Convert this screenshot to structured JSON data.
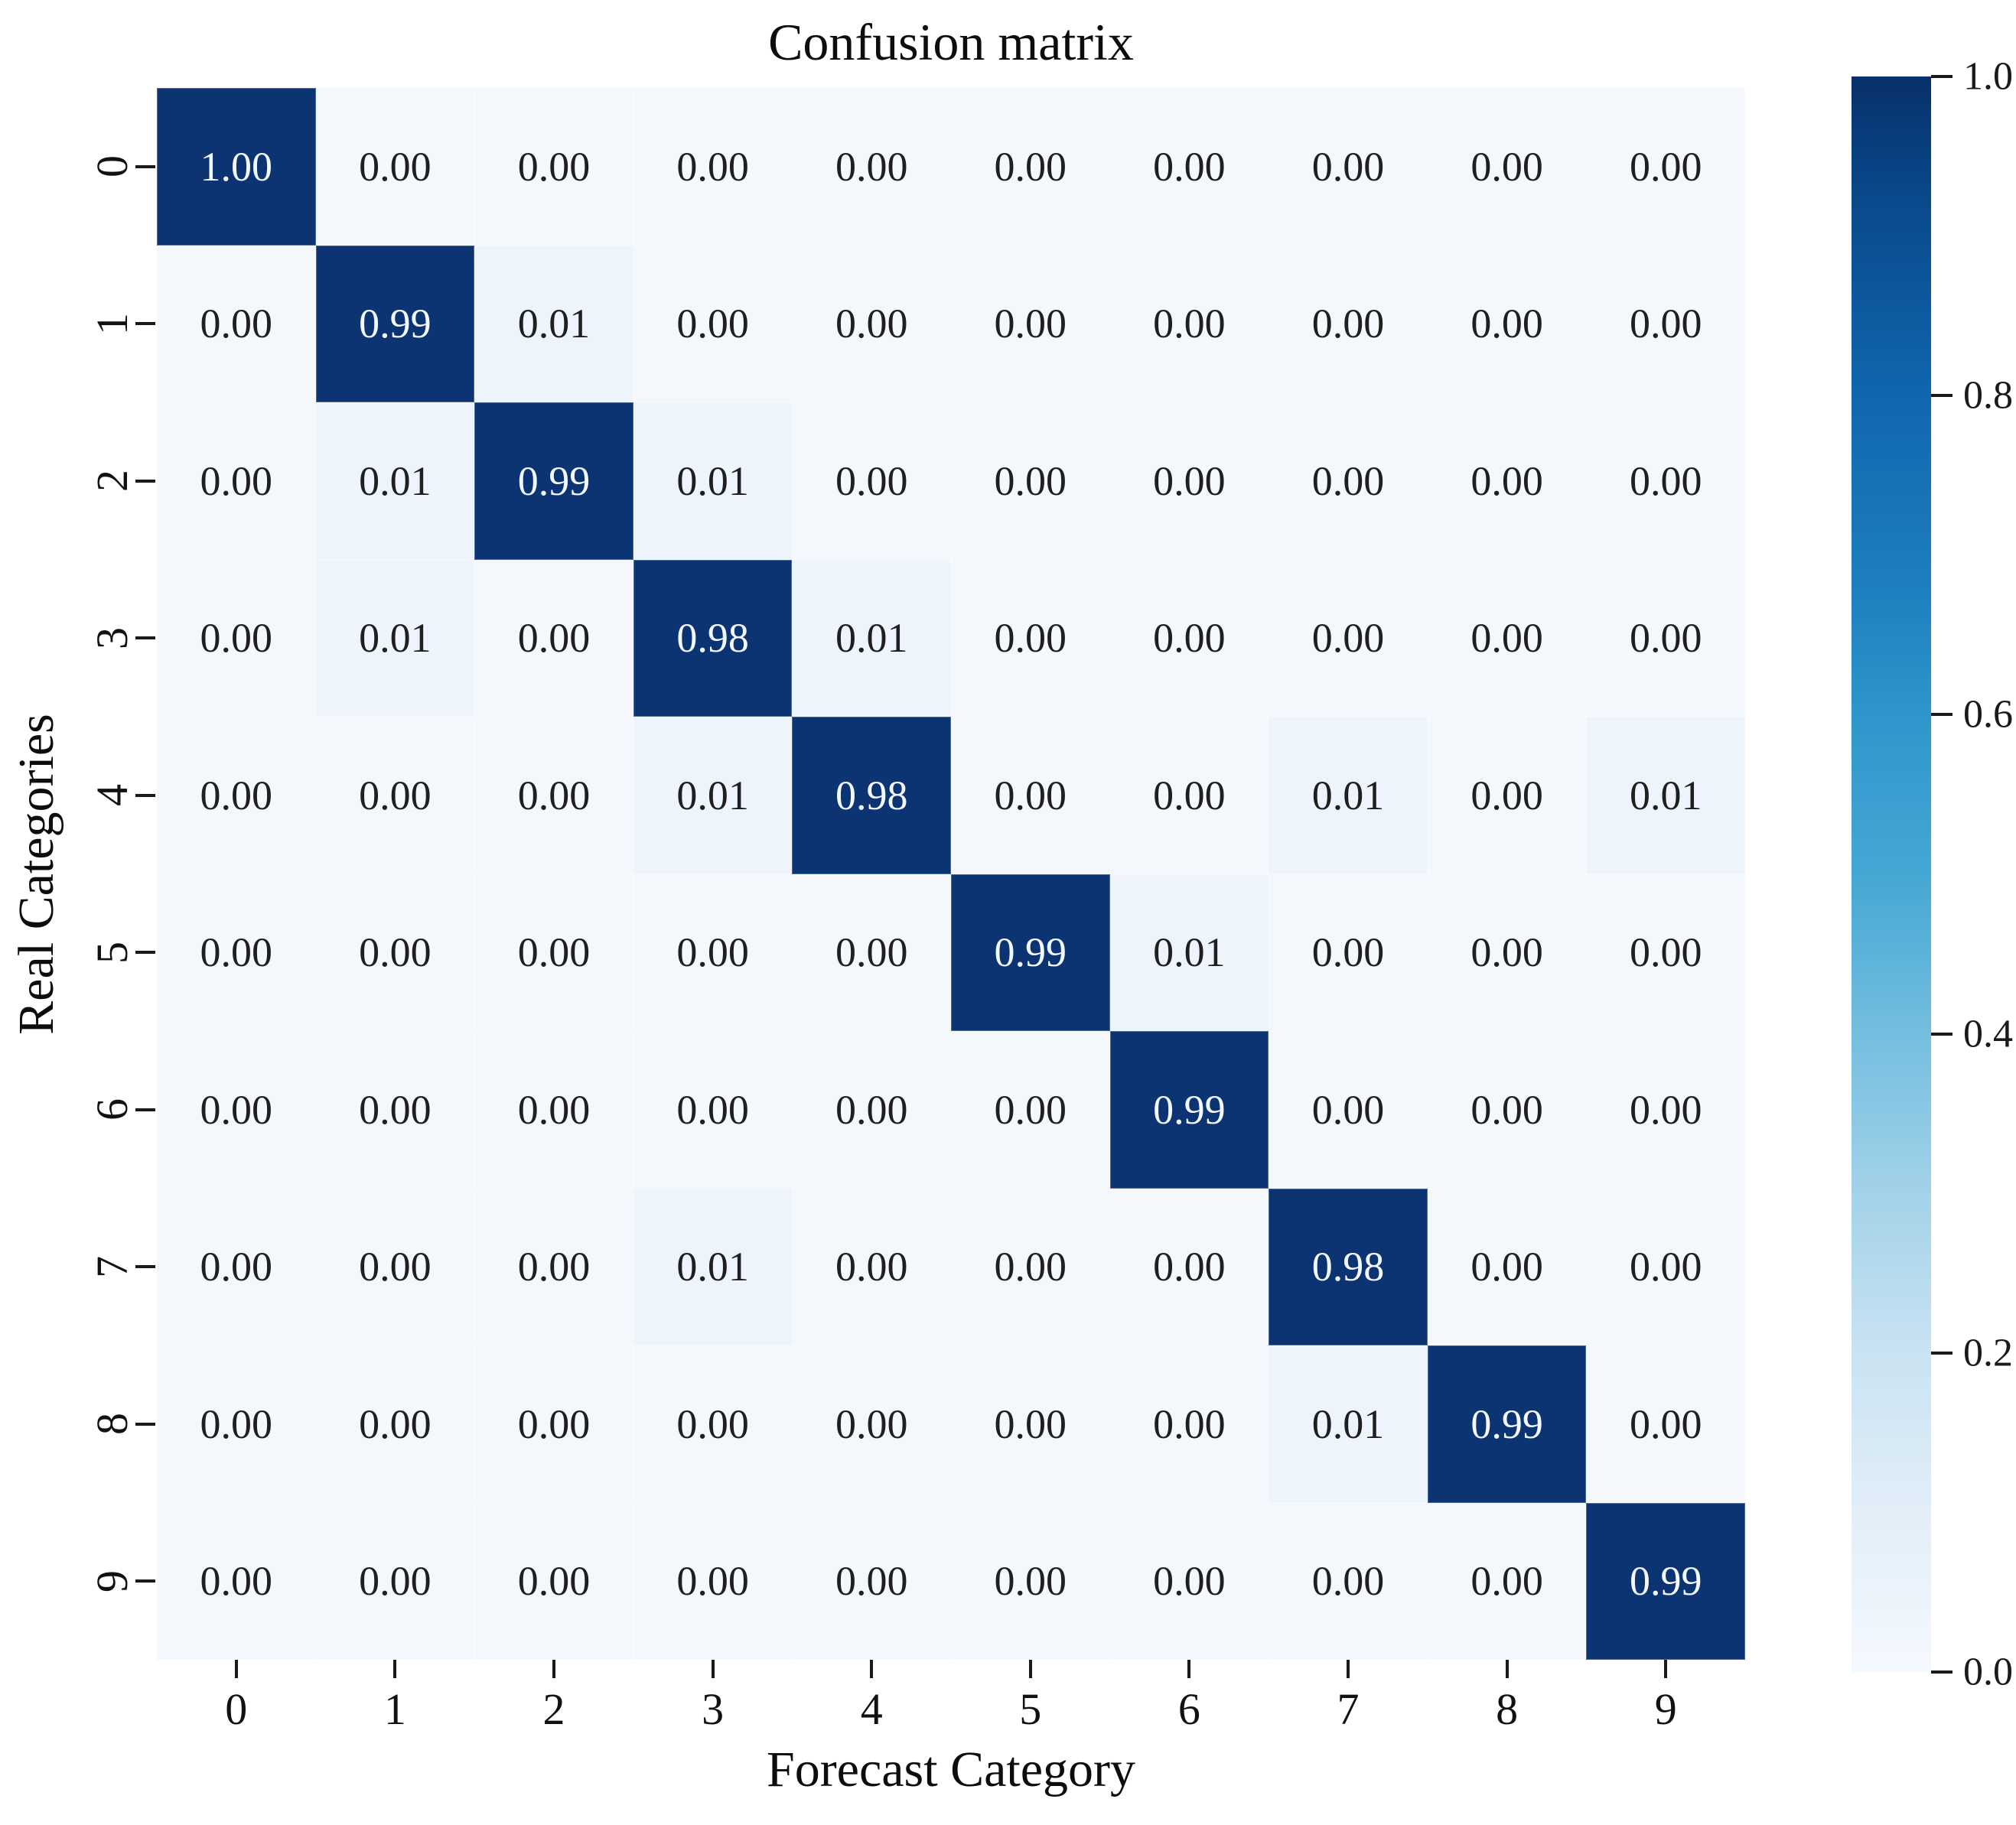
{
  "chart_data": {
    "type": "heatmap",
    "title": "Confusion matrix",
    "xlabel": "Forecast Category",
    "ylabel": "Real Categories",
    "x_ticklabels": [
      "0",
      "1",
      "2",
      "3",
      "4",
      "5",
      "6",
      "7",
      "8",
      "9"
    ],
    "y_ticklabels": [
      "0",
      "1",
      "2",
      "3",
      "4",
      "5",
      "6",
      "7",
      "8",
      "9"
    ],
    "matrix": [
      [
        1.0,
        0.0,
        0.0,
        0.0,
        0.0,
        0.0,
        0.0,
        0.0,
        0.0,
        0.0
      ],
      [
        0.0,
        0.99,
        0.01,
        0.0,
        0.0,
        0.0,
        0.0,
        0.0,
        0.0,
        0.0
      ],
      [
        0.0,
        0.01,
        0.99,
        0.01,
        0.0,
        0.0,
        0.0,
        0.0,
        0.0,
        0.0
      ],
      [
        0.0,
        0.01,
        0.0,
        0.98,
        0.01,
        0.0,
        0.0,
        0.0,
        0.0,
        0.0
      ],
      [
        0.0,
        0.0,
        0.0,
        0.01,
        0.98,
        0.0,
        0.0,
        0.01,
        0.0,
        0.01
      ],
      [
        0.0,
        0.0,
        0.0,
        0.0,
        0.0,
        0.99,
        0.01,
        0.0,
        0.0,
        0.0
      ],
      [
        0.0,
        0.0,
        0.0,
        0.0,
        0.0,
        0.0,
        0.99,
        0.0,
        0.0,
        0.0
      ],
      [
        0.0,
        0.0,
        0.0,
        0.01,
        0.0,
        0.0,
        0.0,
        0.98,
        0.0,
        0.0
      ],
      [
        0.0,
        0.0,
        0.0,
        0.0,
        0.0,
        0.0,
        0.0,
        0.01,
        0.99,
        0.0
      ],
      [
        0.0,
        0.0,
        0.0,
        0.0,
        0.0,
        0.0,
        0.0,
        0.0,
        0.0,
        0.99
      ]
    ],
    "value_format": "two_decimals",
    "grid": false,
    "colorbar": {
      "position": "right",
      "ticks": [
        "1.0",
        "0.8",
        "0.6",
        "0.4",
        "0.2",
        "0.0"
      ],
      "min": 0.0,
      "max": 1.0,
      "colormap": "Blues"
    },
    "colors": {
      "cell_high": "#0c3472",
      "cell_low_nonzero": "#edf4fb",
      "cell_zero": "#f4f8fd",
      "text_on_dark": "#f3f7fe",
      "text_on_light": "#1f1f1f",
      "tick": "#1a1a1a"
    }
  }
}
